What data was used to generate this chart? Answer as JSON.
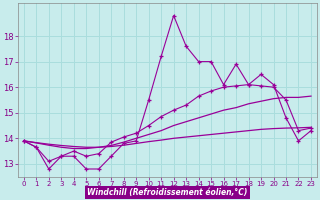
{
  "xlabel": "Windchill (Refroidissement éolien,°C)",
  "background_color": "#c8ecec",
  "line_color": "#990099",
  "grid_color": "#aadddd",
  "xlabel_bg": "#9900aa",
  "x": [
    0,
    1,
    2,
    3,
    4,
    5,
    6,
    7,
    8,
    9,
    10,
    11,
    12,
    13,
    14,
    15,
    16,
    17,
    18,
    19,
    20,
    21,
    22,
    23
  ],
  "series1": [
    13.9,
    13.65,
    12.8,
    13.3,
    13.3,
    12.8,
    12.8,
    13.3,
    13.8,
    13.9,
    15.5,
    17.2,
    18.8,
    17.6,
    17.0,
    17.0,
    16.1,
    16.9,
    16.1,
    16.5,
    16.1,
    14.8,
    13.9,
    14.3
  ],
  "series2": [
    13.9,
    13.65,
    13.1,
    13.3,
    13.5,
    13.3,
    13.4,
    13.85,
    14.05,
    14.2,
    14.5,
    14.85,
    15.1,
    15.3,
    15.65,
    15.85,
    16.0,
    16.05,
    16.1,
    16.05,
    16.0,
    15.5,
    14.3,
    14.4
  ],
  "series3": [
    13.9,
    13.82,
    13.73,
    13.65,
    13.6,
    13.6,
    13.65,
    13.72,
    13.85,
    14.0,
    14.15,
    14.3,
    14.5,
    14.65,
    14.8,
    14.95,
    15.1,
    15.2,
    15.35,
    15.45,
    15.55,
    15.6,
    15.6,
    15.65
  ],
  "series4": [
    13.9,
    13.83,
    13.77,
    13.72,
    13.68,
    13.65,
    13.65,
    13.68,
    13.73,
    13.8,
    13.87,
    13.93,
    14.0,
    14.05,
    14.1,
    14.15,
    14.2,
    14.25,
    14.3,
    14.35,
    14.38,
    14.4,
    14.41,
    14.43
  ],
  "ylim": [
    12.5,
    19.3
  ],
  "yticks": [
    13,
    14,
    15,
    16,
    17,
    18
  ],
  "xticks": [
    0,
    1,
    2,
    3,
    4,
    5,
    6,
    7,
    8,
    9,
    10,
    11,
    12,
    13,
    14,
    15,
    16,
    17,
    18,
    19,
    20,
    21,
    22,
    23
  ]
}
